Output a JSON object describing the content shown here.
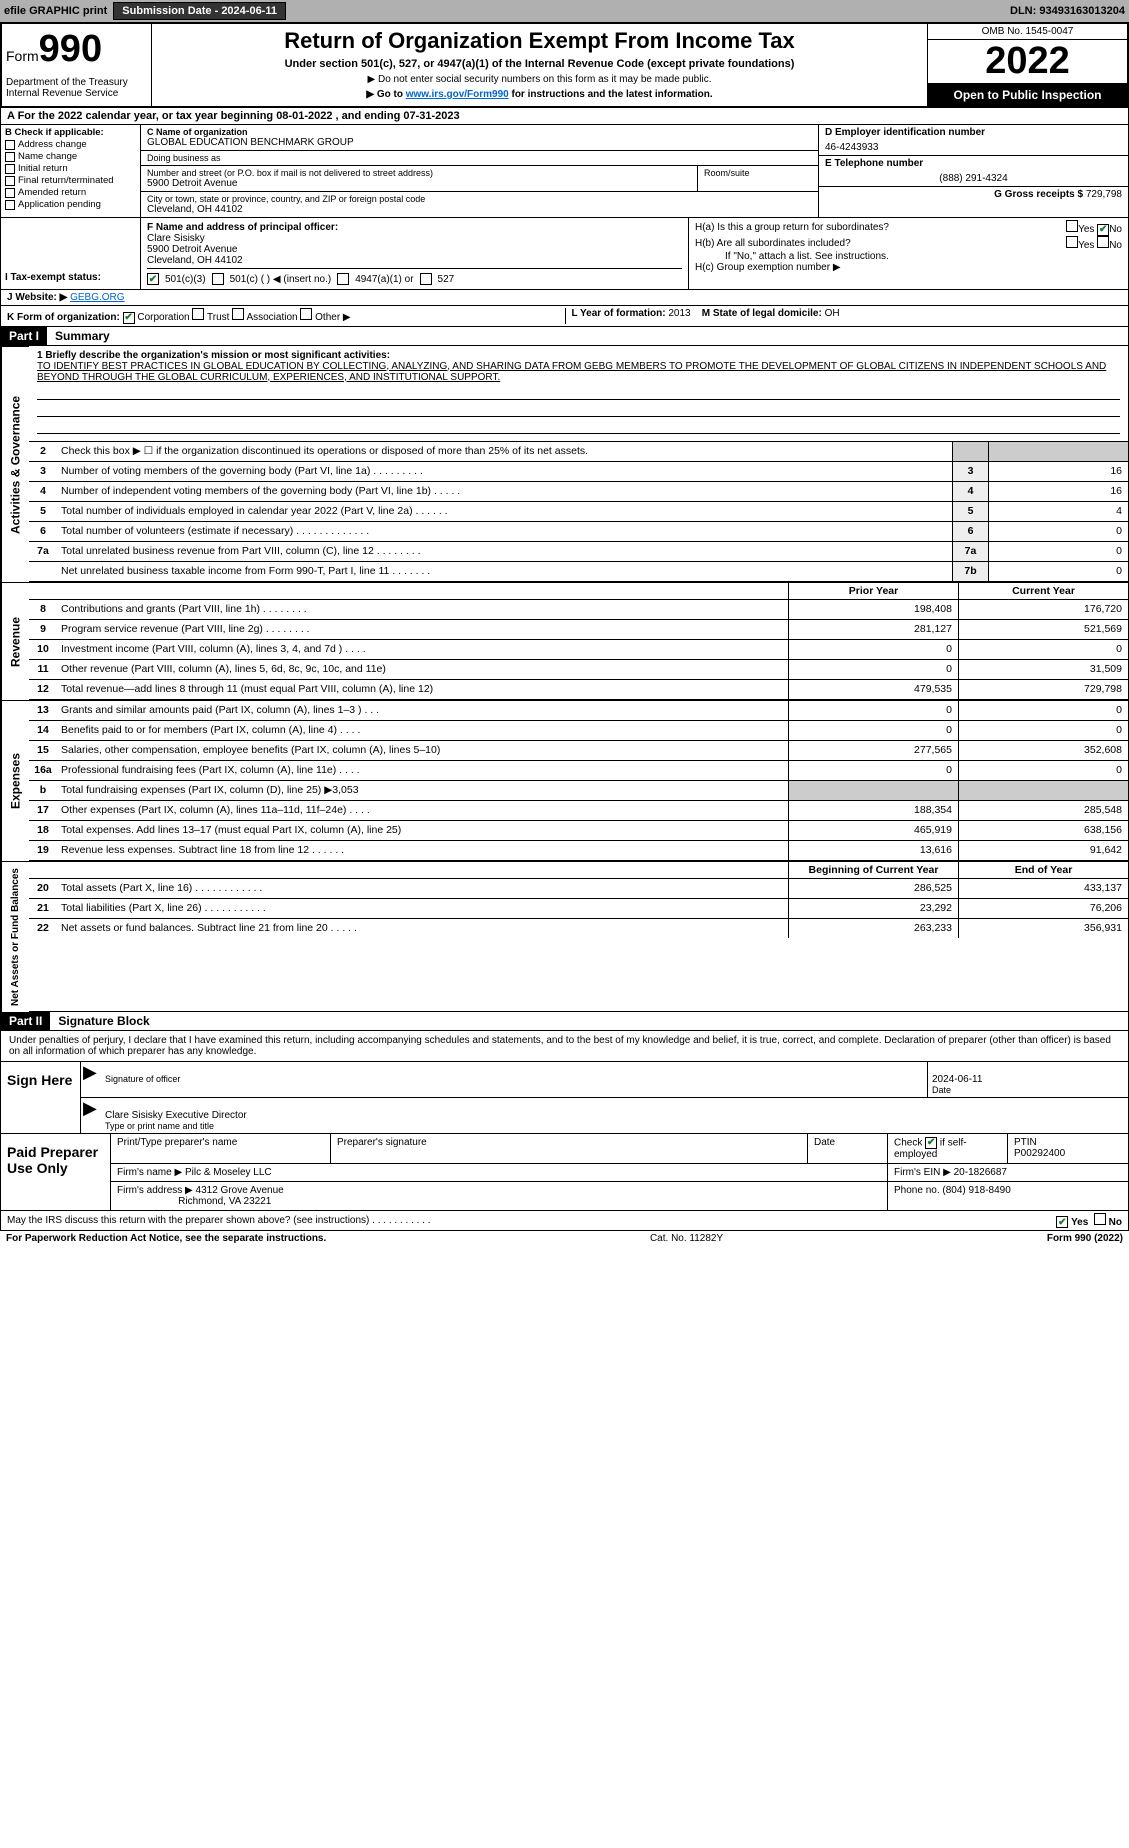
{
  "topbar": {
    "efile": "efile GRAPHIC print",
    "sub_lbl": "Submission Date - 2024-06-11",
    "dln": "DLN: 93493163013204"
  },
  "header": {
    "form_prefix": "Form",
    "form_num": "990",
    "title": "Return of Organization Exempt From Income Tax",
    "subtitle": "Under section 501(c), 527, or 4947(a)(1) of the Internal Revenue Code (except private foundations)",
    "note1": "▶ Do not enter social security numbers on this form as it may be made public.",
    "note2_pre": "▶ Go to ",
    "note2_link": "www.irs.gov/Form990",
    "note2_post": " for instructions and the latest information.",
    "dept": "Department of the Treasury\nInternal Revenue Service",
    "omb": "OMB No. 1545-0047",
    "year": "2022",
    "pub": "Open to Public Inspection"
  },
  "row_a": {
    "text": "A For the 2022 calendar year, or tax year beginning 08-01-2022    , and ending 07-31-2023"
  },
  "col_b": {
    "hdr": "B Check if applicable:",
    "items": [
      "Address change",
      "Name change",
      "Initial return",
      "Final return/terminated",
      "Amended return",
      "Application pending"
    ]
  },
  "col_c": {
    "name_lbl": "C Name of organization",
    "name": "GLOBAL EDUCATION BENCHMARK GROUP",
    "dba_lbl": "Doing business as",
    "dba": "",
    "addr_lbl": "Number and street (or P.O. box if mail is not delivered to street address)",
    "room_lbl": "Room/suite",
    "addr": "5900 Detroit Avenue",
    "city_lbl": "City or town, state or province, country, and ZIP or foreign postal code",
    "city": "Cleveland, OH  44102"
  },
  "col_d": {
    "ein_lbl": "D Employer identification number",
    "ein": "46-4243933",
    "phone_lbl": "E Telephone number",
    "phone": "(888) 291-4324",
    "gross_lbl": "G Gross receipts $",
    "gross": "729,798"
  },
  "row_f": {
    "lbl": "F  Name and address of principal officer:",
    "name": "Clare Sisisky",
    "addr1": "5900 Detroit Avenue",
    "addr2": "Cleveland, OH  44102"
  },
  "row_h": {
    "ha": "H(a)  Is this a group return for subordinates?",
    "hb": "H(b)  Are all subordinates included?",
    "hb_note": "If \"No,\" attach a list. See instructions.",
    "hc": "H(c)  Group exemption number ▶",
    "yes": "Yes",
    "no": "No"
  },
  "row_i": {
    "lbl": "I  Tax-exempt status:",
    "o1": "501(c)(3)",
    "o2": "501(c) (  )  ◀ (insert no.)",
    "o3": "4947(a)(1) or",
    "o4": "527"
  },
  "row_j": {
    "lbl": "J  Website: ▶",
    "val": "GEBG.ORG"
  },
  "row_k": {
    "lbl": "K Form of organization:",
    "o1": "Corporation",
    "o2": "Trust",
    "o3": "Association",
    "o4": "Other ▶"
  },
  "row_l": {
    "lbl": "L Year of formation: ",
    "val": "2013"
  },
  "row_m": {
    "lbl": "M State of legal domicile: ",
    "val": "OH"
  },
  "part1": {
    "num": "Part I",
    "title": "Summary"
  },
  "mission": {
    "lbl": "1  Briefly describe the organization's mission or most significant activities:",
    "text": "TO IDENTIFY BEST PRACTICES IN GLOBAL EDUCATION BY COLLECTING, ANALYZING, AND SHARING DATA FROM GEBG MEMBERS TO PROMOTE THE DEVELOPMENT OF GLOBAL CITIZENS IN INDEPENDENT SCHOOLS AND BEYOND THROUGH THE GLOBAL CURRICULUM, EXPERIENCES, AND INSTITUTIONAL SUPPORT."
  },
  "lines_gov": [
    {
      "n": "2",
      "t": "Check this box ▶ ☐ if the organization discontinued its operations or disposed of more than 25% of its net assets.",
      "box": "",
      "v": ""
    },
    {
      "n": "3",
      "t": "Number of voting members of the governing body (Part VI, line 1a)  .   .   .   .   .   .   .   .   .",
      "box": "3",
      "v": "16"
    },
    {
      "n": "4",
      "t": "Number of independent voting members of the governing body (Part VI, line 1b)  .   .   .   .   .",
      "box": "4",
      "v": "16"
    },
    {
      "n": "5",
      "t": "Total number of individuals employed in calendar year 2022 (Part V, line 2a)  .   .   .   .   .   .",
      "box": "5",
      "v": "4"
    },
    {
      "n": "6",
      "t": "Total number of volunteers (estimate if necessary)   .   .   .   .   .   .   .   .   .   .   .   .   .",
      "box": "6",
      "v": "0"
    },
    {
      "n": "7a",
      "t": "Total unrelated business revenue from Part VIII, column (C), line 12  .   .   .   .   .   .   .   .",
      "box": "7a",
      "v": "0"
    },
    {
      "n": "",
      "t": "Net unrelated business taxable income from Form 990-T, Part I, line 11  .   .   .   .   .   .   .",
      "box": "7b",
      "v": "0"
    }
  ],
  "hdr2": {
    "prior": "Prior Year",
    "curr": "Current Year",
    "boy": "Beginning of Current Year",
    "eoy": "End of Year"
  },
  "lines_rev": [
    {
      "n": "8",
      "t": "Contributions and grants (Part VIII, line 1h)  .   .   .   .   .   .   .   .",
      "v1": "198,408",
      "v2": "176,720"
    },
    {
      "n": "9",
      "t": "Program service revenue (Part VIII, line 2g)  .   .   .   .   .   .   .   .",
      "v1": "281,127",
      "v2": "521,569"
    },
    {
      "n": "10",
      "t": "Investment income (Part VIII, column (A), lines 3, 4, and 7d )  .   .   .   .",
      "v1": "0",
      "v2": "0"
    },
    {
      "n": "11",
      "t": "Other revenue (Part VIII, column (A), lines 5, 6d, 8c, 9c, 10c, and 11e)",
      "v1": "0",
      "v2": "31,509"
    },
    {
      "n": "12",
      "t": "Total revenue—add lines 8 through 11 (must equal Part VIII, column (A), line 12)",
      "v1": "479,535",
      "v2": "729,798"
    }
  ],
  "lines_exp": [
    {
      "n": "13",
      "t": "Grants and similar amounts paid (Part IX, column (A), lines 1–3 )  .   .   .",
      "v1": "0",
      "v2": "0"
    },
    {
      "n": "14",
      "t": "Benefits paid to or for members (Part IX, column (A), line 4)  .   .   .   .",
      "v1": "0",
      "v2": "0"
    },
    {
      "n": "15",
      "t": "Salaries, other compensation, employee benefits (Part IX, column (A), lines 5–10)",
      "v1": "277,565",
      "v2": "352,608"
    },
    {
      "n": "16a",
      "t": "Professional fundraising fees (Part IX, column (A), line 11e)  .   .   .   .",
      "v1": "0",
      "v2": "0"
    },
    {
      "n": "b",
      "t": "Total fundraising expenses (Part IX, column (D), line 25) ▶3,053",
      "v1": "",
      "v2": "",
      "grey": true
    },
    {
      "n": "17",
      "t": "Other expenses (Part IX, column (A), lines 11a–11d, 11f–24e)  .   .   .   .",
      "v1": "188,354",
      "v2": "285,548"
    },
    {
      "n": "18",
      "t": "Total expenses. Add lines 13–17 (must equal Part IX, column (A), line 25)",
      "v1": "465,919",
      "v2": "638,156"
    },
    {
      "n": "19",
      "t": "Revenue less expenses. Subtract line 18 from line 12  .   .   .   .   .   .",
      "v1": "13,616",
      "v2": "91,642"
    }
  ],
  "lines_na": [
    {
      "n": "20",
      "t": "Total assets (Part X, line 16)  .   .   .   .   .   .   .   .   .   .   .   .",
      "v1": "286,525",
      "v2": "433,137"
    },
    {
      "n": "21",
      "t": "Total liabilities (Part X, line 26)  .   .   .   .   .   .   .   .   .   .   .",
      "v1": "23,292",
      "v2": "76,206"
    },
    {
      "n": "22",
      "t": "Net assets or fund balances. Subtract line 21 from line 20  .   .   .   .   .",
      "v1": "263,233",
      "v2": "356,931"
    }
  ],
  "side_tabs": {
    "gov": "Activities & Governance",
    "rev": "Revenue",
    "exp": "Expenses",
    "na": "Net Assets or Fund Balances"
  },
  "part2": {
    "num": "Part II",
    "title": "Signature Block"
  },
  "sig": {
    "decl": "Under penalties of perjury, I declare that I have examined this return, including accompanying schedules and statements, and to the best of my knowledge and belief, it is true, correct, and complete. Declaration of preparer (other than officer) is based on all information of which preparer has any knowledge.",
    "side": "Sign Here",
    "date": "2024-06-11",
    "so_lbl": "Signature of officer",
    "dt_lbl": "Date",
    "name": "Clare Sisisky  Executive Director",
    "name_lbl": "Type or print name and title"
  },
  "paid": {
    "side": "Paid Preparer Use Only",
    "h1": "Print/Type preparer's name",
    "h2": "Preparer's signature",
    "h3": "Date",
    "h4_pre": "Check",
    "h4_post": "if self-employed",
    "ptin_lbl": "PTIN",
    "ptin": "P00292400",
    "firm_lbl": "Firm's name    ▶",
    "firm": "Pilc & Moseley LLC",
    "ein_lbl": "Firm's EIN ▶",
    "ein": "20-1826687",
    "addr_lbl": "Firm's address ▶",
    "addr1": "4312 Grove Avenue",
    "addr2": "Richmond, VA  23221",
    "phone_lbl": "Phone no.",
    "phone": "(804) 918-8490"
  },
  "foot": {
    "q": "May the IRS discuss this return with the preparer shown above? (see instructions)  .   .   .   .   .   .   .   .   .   .   .",
    "yes": "Yes",
    "no": "No",
    "pra": "For Paperwork Reduction Act Notice, see the separate instructions.",
    "cat": "Cat. No. 11282Y",
    "form": "Form 990 (2022)"
  }
}
